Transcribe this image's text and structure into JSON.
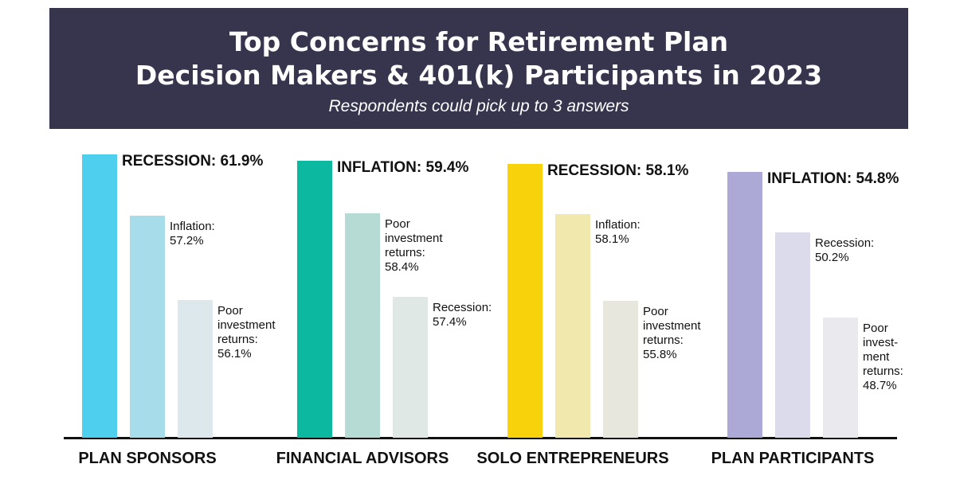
{
  "header": {
    "title_line1": "Top Concerns for Retirement Plan",
    "title_line2": "Decision Makers & 401(k) Participants in 2023",
    "subtitle": "Respondents could pick up to 3 answers"
  },
  "chart_data": {
    "type": "bar",
    "title": "Top Concerns for Retirement Plan Decision Makers & 401(k) Participants in 2023",
    "subtitle": "Respondents could pick up to 3 answers",
    "unit": "%",
    "groups": [
      {
        "category": "PLAN SPONSORS",
        "colors": [
          "#4fcfee",
          "#a7dcea",
          "#dde8ec"
        ],
        "bars": [
          {
            "label": "RECESSION: 61.9%",
            "name": "Recession",
            "value": 61.9
          },
          {
            "label": "Inflation:\n57.2%",
            "name": "Inflation",
            "value": 57.2
          },
          {
            "label": "Poor\ninvestment\nreturns:\n56.1%",
            "name": "Poor investment returns",
            "value": 56.1
          }
        ]
      },
      {
        "category": "FINANCIAL ADVISORS",
        "colors": [
          "#0db8a0",
          "#b5dbd4",
          "#e0e8e5"
        ],
        "bars": [
          {
            "label": "INFLATION: 59.4%",
            "name": "Inflation",
            "value": 59.4
          },
          {
            "label": "Poor\ninvestment\nreturns:\n58.4%",
            "name": "Poor investment returns",
            "value": 58.4
          },
          {
            "label": "Recession:\n57.4%",
            "name": "Recession",
            "value": 57.4
          }
        ]
      },
      {
        "category": "SOLO ENTREPRENEURS",
        "colors": [
          "#f8d20a",
          "#f1e8ad",
          "#e8e7dd"
        ],
        "bars": [
          {
            "label": "RECESSION: 58.1%",
            "name": "Recession",
            "value": 58.1
          },
          {
            "label": "Inflation:\n58.1%",
            "name": "Inflation",
            "value": 58.1
          },
          {
            "label": "Poor\ninvestment\nreturns:\n55.8%",
            "name": "Poor investment returns",
            "value": 55.8
          }
        ]
      },
      {
        "category": "PLAN PARTICIPANTS",
        "colors": [
          "#ada9d6",
          "#dcdbec",
          "#e9e9ee"
        ],
        "bars": [
          {
            "label": "INFLATION: 54.8%",
            "name": "Inflation",
            "value": 54.8
          },
          {
            "label": "Recession:\n50.2%",
            "name": "Recession",
            "value": 50.2
          },
          {
            "label": "Poor\ninvest-\nment\nreturns:\n48.7%",
            "name": "Poor investment returns",
            "value": 48.7
          }
        ]
      }
    ]
  }
}
